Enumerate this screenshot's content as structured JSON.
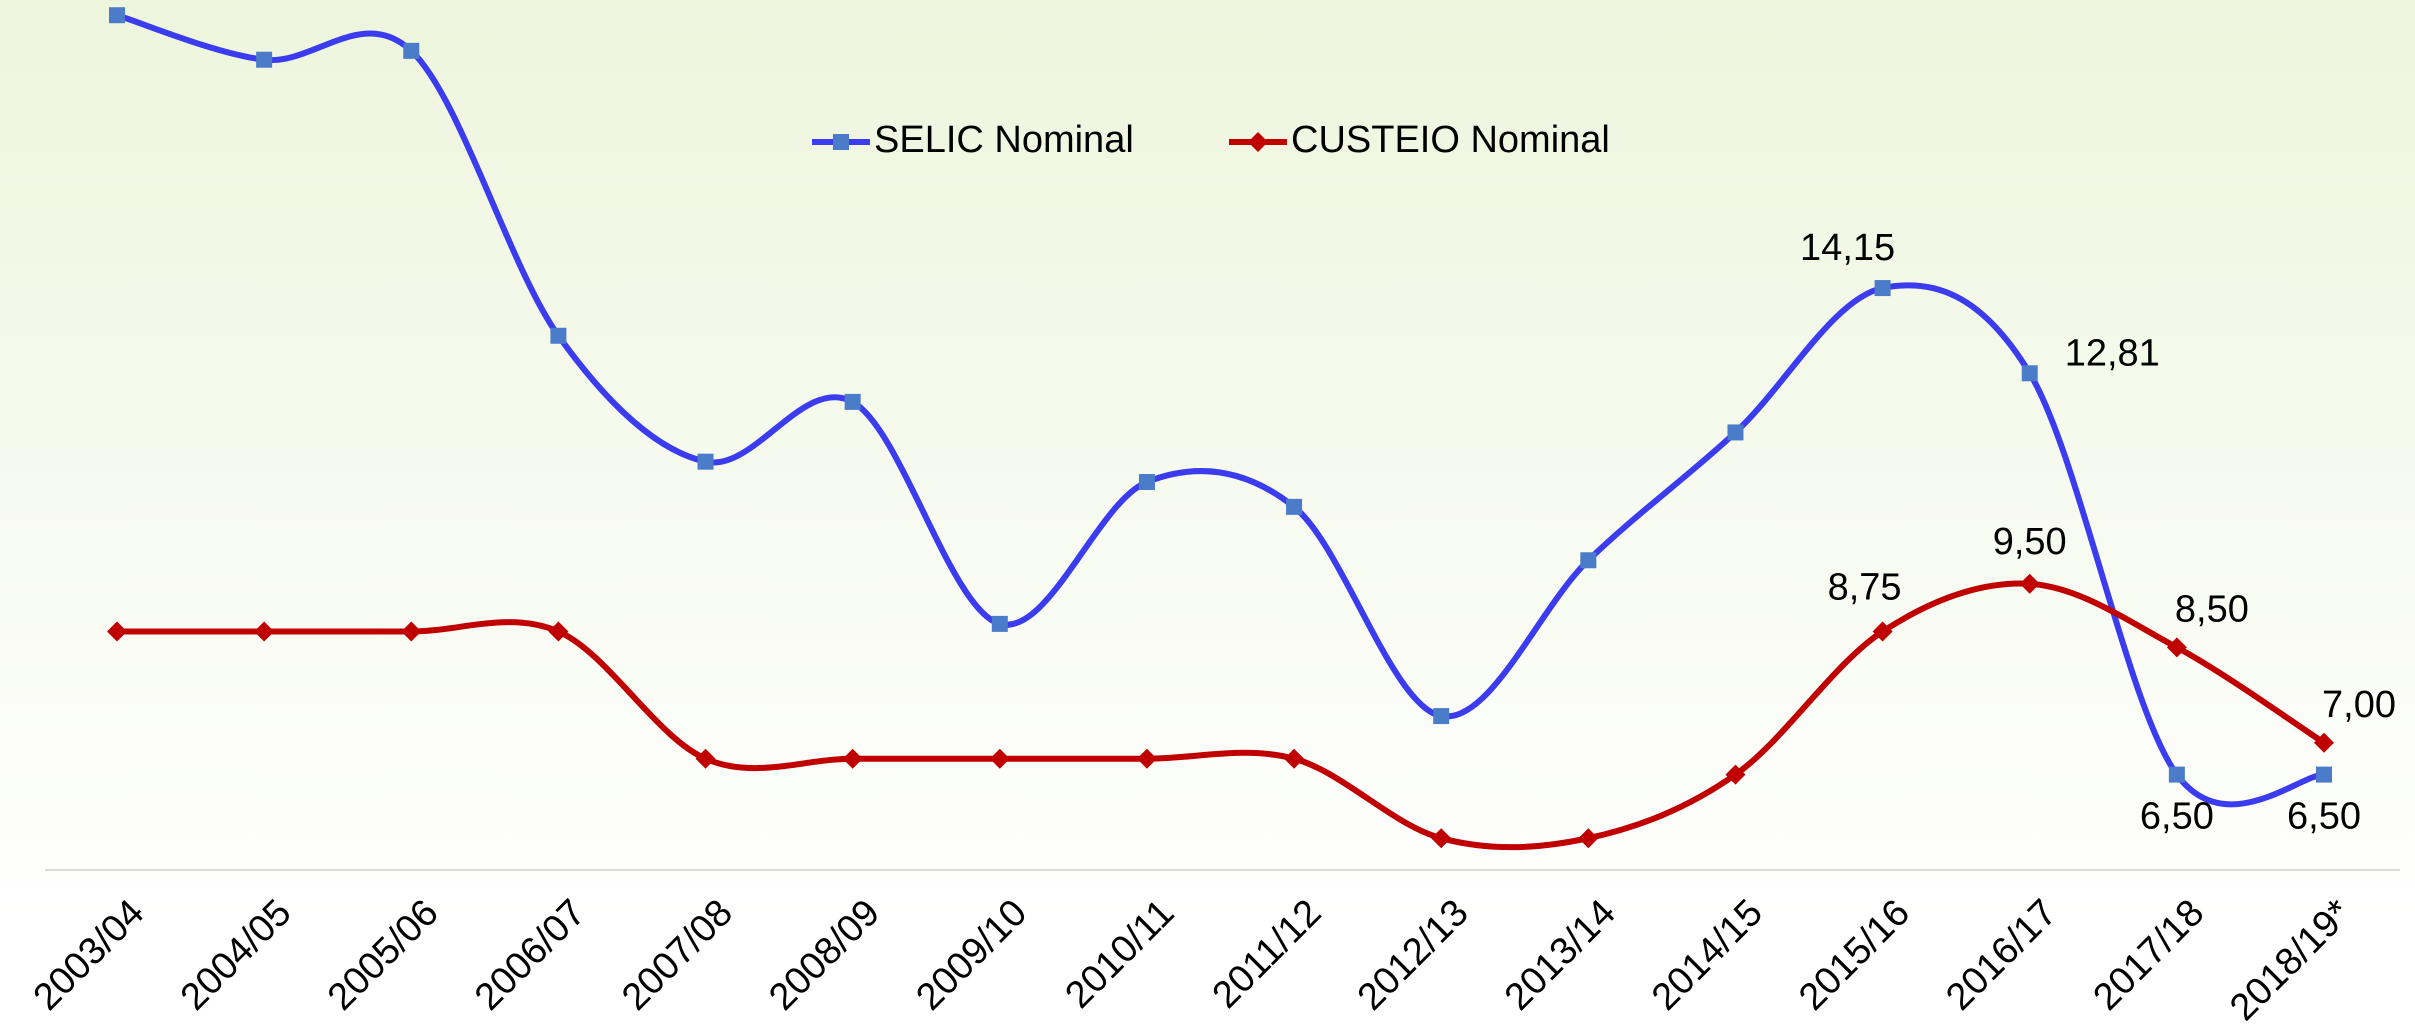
{
  "chart_data": {
    "type": "line",
    "categories": [
      "2003/04",
      "2004/05",
      "2005/06",
      "2006/07",
      "2007/08",
      "2008/09",
      "2009/10",
      "2010/11",
      "2011/12",
      "2012/13",
      "2013/14",
      "2014/15",
      "2015/16",
      "2016/17",
      "2017/18",
      "2018/19*"
    ],
    "series": [
      {
        "name": "SELIC Nominal",
        "color": "#3b3bf0",
        "marker": "square",
        "marker_color": "#4a7cc9",
        "values": [
          18.44,
          17.74,
          17.88,
          13.4,
          11.42,
          12.36,
          8.87,
          11.1,
          10.71,
          7.42,
          9.87,
          11.88,
          14.15,
          12.81,
          6.5,
          6.5
        ],
        "value_labels": [
          null,
          null,
          null,
          null,
          null,
          null,
          null,
          null,
          null,
          null,
          null,
          null,
          "14,15",
          "12,81",
          "6,50",
          "6,50"
        ]
      },
      {
        "name": "CUSTEIO Nominal",
        "color": "#c00000",
        "marker": "diamond",
        "marker_color": "#c00000",
        "values": [
          8.75,
          8.75,
          8.75,
          8.75,
          6.75,
          6.75,
          6.75,
          6.75,
          6.75,
          5.5,
          5.5,
          6.5,
          8.75,
          9.5,
          8.5,
          7.0
        ],
        "value_labels": [
          null,
          null,
          null,
          null,
          null,
          null,
          null,
          null,
          null,
          null,
          null,
          null,
          "8,75",
          "9,50",
          "8,50",
          "7,00"
        ]
      }
    ],
    "ylim": [
      5,
      19
    ],
    "legend": "top"
  }
}
